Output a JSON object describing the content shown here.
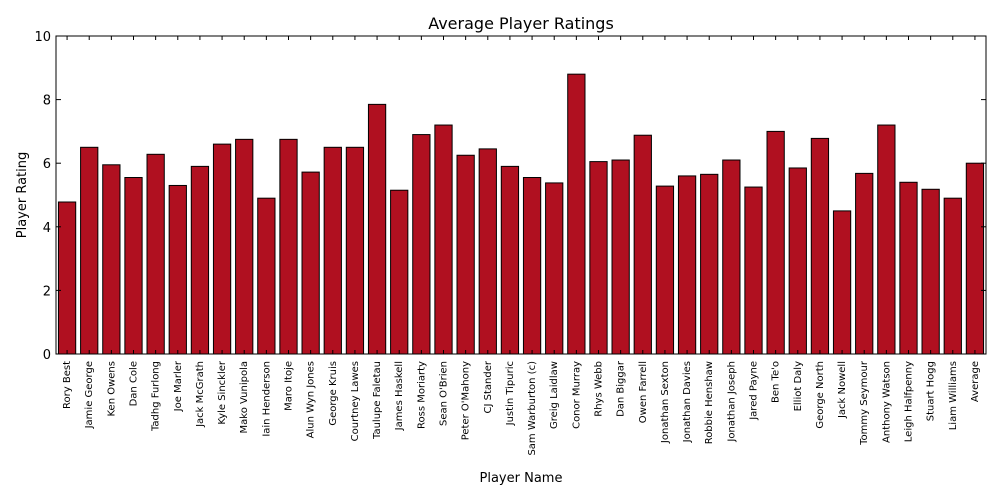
{
  "chart_data": {
    "type": "bar",
    "title": "Average Player Ratings",
    "xlabel": "Player Name",
    "ylabel": "Player Rating",
    "ylim": [
      0,
      10
    ],
    "yticks": [
      0,
      2,
      4,
      6,
      8,
      10
    ],
    "bar_color": "#b01020",
    "grid": false,
    "categories": [
      "Rory Best",
      "Jamie George",
      "Ken Owens",
      "Dan Cole",
      "Tadhg Furlong",
      "Joe Marler",
      "Jack McGrath",
      "Kyle Sinckler",
      "Mako Vunipola",
      "Iain Henderson",
      "Maro Itoje",
      "Alun Wyn Jones",
      "George Kruis",
      "Courtney Lawes",
      "Taulupe Faletau",
      "James Haskell",
      "Ross Moriarty",
      "Sean O'Brien",
      "Peter O'Mahony",
      "CJ Stander",
      "Justin Tipuric",
      "Sam Warburton (c)",
      "Greig Laidlaw",
      "Conor Murray",
      "Rhys Webb",
      "Dan Biggar",
      "Owen Farrell",
      "Jonathan Sexton",
      "Jonathan Davies",
      "Robbie Henshaw",
      "Jonathan Joseph",
      "Jared Payne",
      "Ben Te'o",
      "Elliot Daly",
      "George North",
      "Jack Nowell",
      "Tommy Seymour",
      "Anthony Watson",
      "Leigh Halfpenny",
      "Stuart Hogg",
      "Liam Williams",
      "Average"
    ],
    "values": [
      4.78,
      6.5,
      5.95,
      5.55,
      6.28,
      5.3,
      5.9,
      6.6,
      6.75,
      4.9,
      6.75,
      5.72,
      6.5,
      6.5,
      7.85,
      5.15,
      6.9,
      7.2,
      6.25,
      6.45,
      5.9,
      5.55,
      5.38,
      8.8,
      6.05,
      6.1,
      6.88,
      5.28,
      5.6,
      5.65,
      6.1,
      5.25,
      7.0,
      5.85,
      6.78,
      4.5,
      5.68,
      7.2,
      5.4,
      5.18,
      4.9,
      6.0
    ]
  }
}
